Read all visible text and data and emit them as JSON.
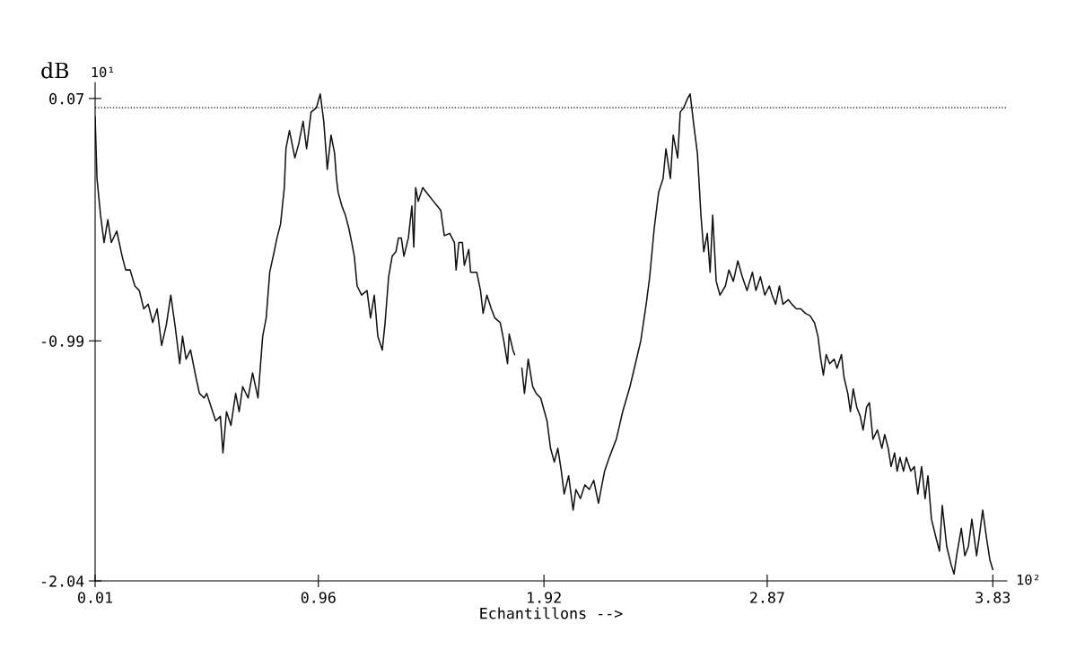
{
  "chart_data": {
    "type": "line",
    "xlabel": "Echantillons -->",
    "ylabel": "dB",
    "annotations": [
      "10¹",
      "10²"
    ],
    "xlim": [
      0.01,
      3.89
    ],
    "ylim": [
      -2.04,
      0.14
    ],
    "xticks": [
      0.01,
      0.96,
      1.92,
      2.87,
      3.83
    ],
    "yticks": [
      -2.04,
      -0.99,
      0.07
    ],
    "grid": false,
    "marker": "none",
    "line_style": "solid",
    "ref_lines": [
      {
        "axis": "y",
        "value": 0.03,
        "line_style": "dotted",
        "color": "#000000"
      }
    ],
    "series": [
      {
        "color": "#111111",
        "x": [
          0.01,
          0.018,
          0.033,
          0.048,
          0.064,
          0.079,
          0.102,
          0.125,
          0.14,
          0.159,
          0.179,
          0.198,
          0.217,
          0.236,
          0.255,
          0.274,
          0.293,
          0.313,
          0.332,
          0.351,
          0.37,
          0.382,
          0.397,
          0.416,
          0.439,
          0.454,
          0.474,
          0.485,
          0.504,
          0.523,
          0.543,
          0.554,
          0.569,
          0.588,
          0.608,
          0.623,
          0.638,
          0.661,
          0.68,
          0.703,
          0.723,
          0.738,
          0.753,
          0.772,
          0.784,
          0.799,
          0.815,
          0.822,
          0.837,
          0.86,
          0.876,
          0.895,
          0.91,
          0.929,
          0.952,
          0.968,
          0.983,
          0.998,
          1.014,
          1.029,
          1.037,
          1.044,
          1.06,
          1.075,
          1.09,
          1.102,
          1.113,
          1.125,
          1.144,
          1.167,
          1.182,
          1.198,
          1.213,
          1.232,
          1.244,
          1.259,
          1.274,
          1.29,
          1.301,
          1.313,
          1.324,
          1.343,
          1.358,
          1.366,
          1.374,
          1.385,
          1.404,
          1.427,
          1.45,
          1.466,
          1.481,
          1.496,
          1.519,
          1.539,
          1.546,
          1.558,
          1.573,
          1.581,
          1.6,
          1.608,
          1.634,
          1.65,
          1.661,
          1.677,
          1.696,
          1.711,
          1.734,
          1.749,
          1.765,
          1.772,
          1.788,
          1.795,
          1.81,
          1.826,
          1.837,
          1.853,
          1.872,
          1.887,
          1.906,
          1.933,
          1.948,
          1.964,
          1.979,
          1.994,
          2.006,
          2.025,
          2.044,
          2.056,
          2.075,
          2.094,
          2.113,
          2.132,
          2.152,
          2.163,
          2.178,
          2.198,
          2.228,
          2.255,
          2.286,
          2.309,
          2.332,
          2.355,
          2.37,
          2.389,
          2.408,
          2.427,
          2.439,
          2.458,
          2.47,
          2.489,
          2.5,
          2.515,
          2.531,
          2.542,
          2.558,
          2.573,
          2.588,
          2.6,
          2.615,
          2.627,
          2.638,
          2.653,
          2.669,
          2.692,
          2.707,
          2.726,
          2.745,
          2.764,
          2.784,
          2.807,
          2.822,
          2.841,
          2.86,
          2.879,
          2.891,
          2.906,
          2.922,
          2.937,
          2.96,
          2.975,
          2.994,
          3.013,
          3.033,
          3.052,
          3.071,
          3.086,
          3.098,
          3.109,
          3.121,
          3.136,
          3.155,
          3.167,
          3.186,
          3.197,
          3.213,
          3.224,
          3.236,
          3.251,
          3.266,
          3.278,
          3.293,
          3.305,
          3.32,
          3.339,
          3.358,
          3.37,
          3.385,
          3.397,
          3.412,
          3.423,
          3.435,
          3.45,
          3.462,
          3.481,
          3.496,
          3.511,
          3.527,
          3.542,
          3.554,
          3.569,
          3.588,
          3.603,
          3.615,
          3.634,
          3.653,
          3.665,
          3.676,
          3.696,
          3.711,
          3.726,
          3.741,
          3.761,
          3.772,
          3.787,
          3.803,
          3.818,
          3.83
        ],
        "values": [
          -0.01,
          -0.28,
          -0.44,
          -0.56,
          -0.46,
          -0.56,
          -0.51,
          -0.62,
          -0.68,
          -0.68,
          -0.75,
          -0.77,
          -0.85,
          -0.83,
          -0.91,
          -0.85,
          -1.01,
          -0.92,
          -0.79,
          -0.93,
          -1.09,
          -0.97,
          -1.07,
          -1.03,
          -1.15,
          -1.22,
          -1.24,
          -1.22,
          -1.28,
          -1.34,
          -1.32,
          -1.48,
          -1.3,
          -1.36,
          -1.22,
          -1.3,
          -1.19,
          -1.24,
          -1.13,
          -1.24,
          -0.97,
          -0.89,
          -0.69,
          -0.6,
          -0.54,
          -0.48,
          -0.32,
          -0.15,
          -0.07,
          -0.19,
          -0.13,
          -0.03,
          -0.15,
          0.01,
          0.03,
          0.09,
          -0.03,
          -0.24,
          -0.09,
          -0.17,
          -0.28,
          -0.34,
          -0.4,
          -0.44,
          -0.5,
          -0.56,
          -0.62,
          -0.75,
          -0.79,
          -0.77,
          -0.89,
          -0.79,
          -0.97,
          -1.03,
          -0.91,
          -0.71,
          -0.62,
          -0.6,
          -0.54,
          -0.54,
          -0.62,
          -0.54,
          -0.4,
          -0.58,
          -0.32,
          -0.38,
          -0.32,
          -0.35,
          -0.38,
          -0.4,
          -0.42,
          -0.53,
          -0.52,
          -0.56,
          -0.68,
          -0.56,
          -0.56,
          -0.66,
          -0.59,
          -0.69,
          -0.69,
          -0.77,
          -0.87,
          -0.79,
          -0.85,
          -0.89,
          -0.91,
          -0.99,
          -1.09,
          -0.96,
          -1.03,
          -1.05,
          null,
          -1.11,
          -1.22,
          -1.07,
          -1.19,
          -1.22,
          -1.24,
          -1.34,
          -1.46,
          -1.52,
          -1.46,
          -1.56,
          -1.66,
          -1.58,
          -1.73,
          -1.64,
          -1.68,
          -1.62,
          -1.64,
          -1.6,
          -1.7,
          -1.64,
          -1.56,
          -1.5,
          -1.42,
          -1.3,
          -1.19,
          -1.09,
          -0.99,
          -0.83,
          -0.71,
          -0.5,
          -0.34,
          -0.28,
          -0.15,
          -0.28,
          -0.09,
          -0.19,
          0.01,
          0.03,
          0.07,
          0.09,
          -0.05,
          -0.17,
          -0.44,
          -0.6,
          -0.52,
          -0.69,
          -0.44,
          -0.73,
          -0.79,
          -0.75,
          -0.68,
          -0.73,
          -0.64,
          -0.71,
          -0.77,
          -0.69,
          -0.77,
          -0.71,
          -0.79,
          -0.75,
          -0.79,
          -0.83,
          -0.75,
          -0.83,
          -0.81,
          -0.83,
          -0.85,
          -0.85,
          -0.87,
          -0.88,
          -0.91,
          -0.97,
          -1.07,
          -1.14,
          -1.05,
          -1.09,
          -1.07,
          -1.11,
          -1.05,
          -1.15,
          -1.22,
          -1.3,
          -1.2,
          -1.28,
          -1.32,
          -1.38,
          -1.28,
          -1.26,
          -1.42,
          -1.38,
          -1.46,
          -1.4,
          -1.46,
          -1.54,
          -1.48,
          -1.56,
          -1.5,
          -1.56,
          -1.5,
          -1.56,
          -1.54,
          -1.66,
          -1.54,
          -1.68,
          -1.58,
          -1.77,
          -1.85,
          -1.91,
          -1.71,
          -1.89,
          -1.97,
          -2.01,
          -1.93,
          -1.81,
          -1.93,
          -1.89,
          -1.77,
          -1.93,
          -1.85,
          -1.73,
          -1.85,
          -1.95,
          -1.99
        ]
      }
    ]
  }
}
